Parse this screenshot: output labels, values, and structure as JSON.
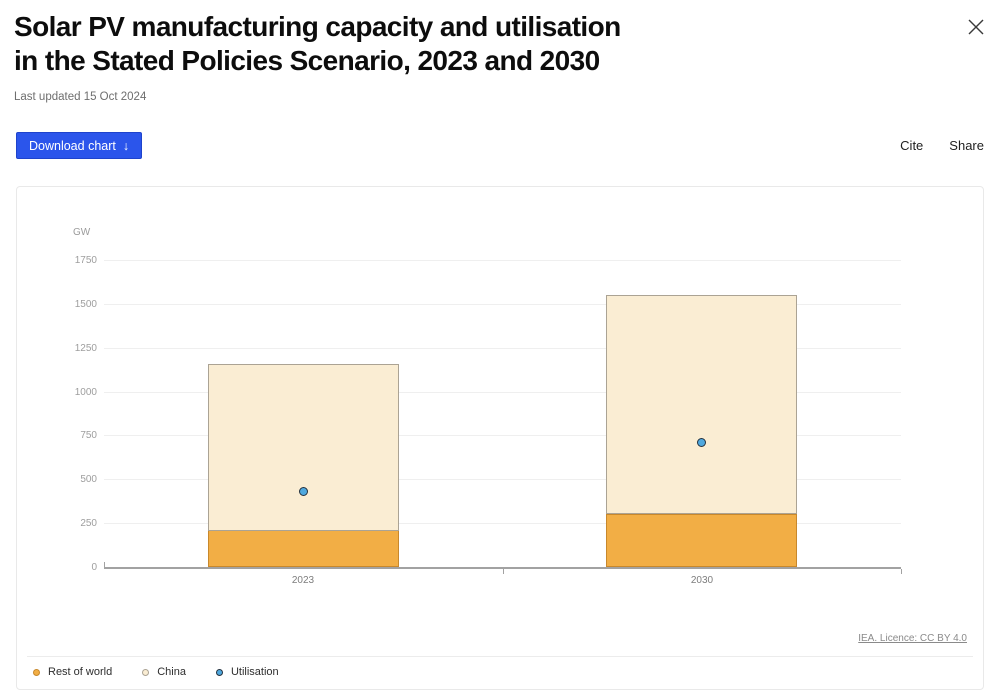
{
  "header": {
    "title_line1": "Solar PV manufacturing capacity and utilisation",
    "title_line2": "in the Stated Policies Scenario, 2023 and 2030",
    "last_updated": "Last updated 15 Oct 2024"
  },
  "toolbar": {
    "download_label": "Download chart",
    "download_arrow": "↓",
    "cite_label": "Cite",
    "share_label": "Share"
  },
  "footer": {
    "license_label": "IEA. Licence: CC BY 4.0"
  },
  "colors": {
    "accent_blue": "#2B55EB",
    "rest_of_world_fill": "#F2AE45",
    "rest_of_world_border": "#C8882C",
    "china_fill": "#FAEDD3",
    "china_border": "#ABA394",
    "utilisation_fill": "#4FA8DE",
    "utilisation_border": "#233240"
  },
  "chart_data": {
    "type": "bar",
    "stacked": true,
    "title": "Solar PV manufacturing capacity and utilisation in the Stated Policies Scenario, 2023 and 2030",
    "unit": "GW",
    "ylabel": "GW",
    "xlabel": "",
    "categories": [
      "2023",
      "2030"
    ],
    "series": [
      {
        "name": "Rest of world",
        "render": "column",
        "values": [
          210,
          300
        ],
        "color": "#F2AE45",
        "border_color": "#C8882C"
      },
      {
        "name": "China",
        "render": "column",
        "values": [
          950,
          1250
        ],
        "color": "#FAEDD3",
        "border_color": "#ABA394"
      },
      {
        "name": "Utilisation",
        "render": "point",
        "values": [
          430,
          710
        ],
        "color": "#4FA8DE",
        "border_color": "#233240"
      }
    ],
    "totals": [
      1160,
      1550
    ],
    "ylim": [
      0,
      1750
    ],
    "yticks": [
      0,
      250,
      500,
      750,
      1000,
      1250,
      1500,
      1750
    ],
    "grid": true,
    "legend_position": "bottom-left",
    "source_note": "IEA. Licence: CC BY 4.0"
  }
}
